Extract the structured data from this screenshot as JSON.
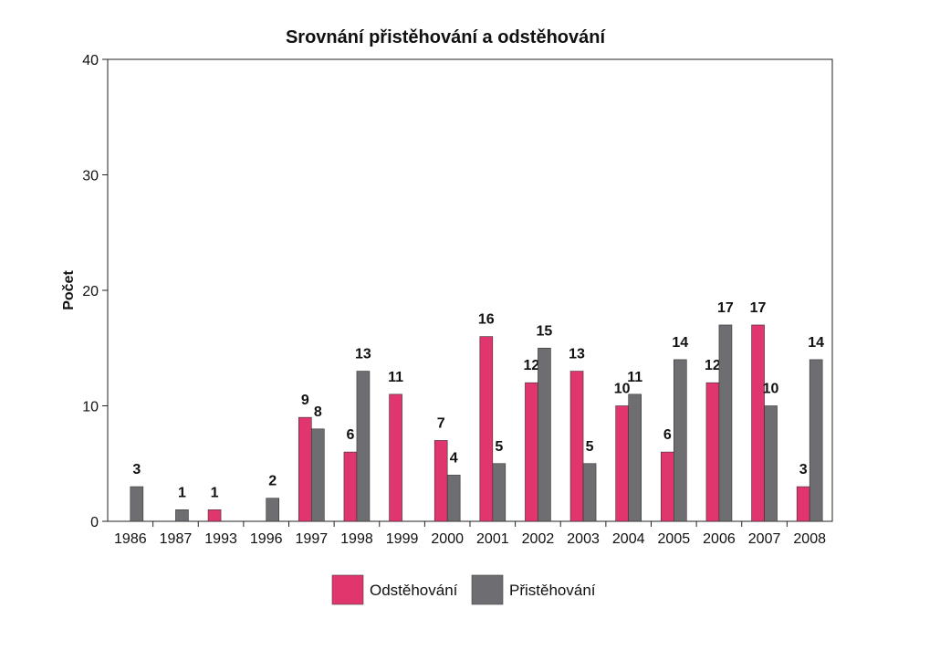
{
  "chart_data": {
    "type": "bar",
    "title": "Srovnání přistěhování a odstěhování",
    "xlabel": "",
    "ylabel": "Počet",
    "ylim": [
      0,
      40
    ],
    "yticks": [
      "0",
      "10",
      "20",
      "30",
      "40"
    ],
    "grid": false,
    "legend_position": "bottom",
    "categories": [
      "1986",
      "1987",
      "1993",
      "1996",
      "1997",
      "1998",
      "1999",
      "2000",
      "2001",
      "2002",
      "2003",
      "2004",
      "2005",
      "2006",
      "2007",
      "2008"
    ],
    "series": [
      {
        "name": "Odstěhování",
        "color": "#e0356d",
        "values": [
          0,
          0,
          1,
          0,
          9,
          6,
          11,
          7,
          16,
          12,
          13,
          10,
          6,
          12,
          17,
          3
        ],
        "labels": [
          "",
          "",
          "1",
          "",
          "9",
          "6",
          "11",
          "7",
          "16",
          "12",
          "13",
          "10",
          "6",
          "12",
          "17",
          "3"
        ]
      },
      {
        "name": "Přistěhování",
        "color": "#6e6e72",
        "values": [
          3,
          1,
          0,
          2,
          8,
          13,
          0,
          4,
          5,
          15,
          5,
          11,
          14,
          17,
          10,
          14
        ],
        "labels": [
          "3",
          "1",
          "",
          "2",
          "8",
          "13",
          "",
          "4",
          "5",
          "15",
          "5",
          "11",
          "14",
          "17",
          "10",
          "14"
        ]
      }
    ]
  }
}
